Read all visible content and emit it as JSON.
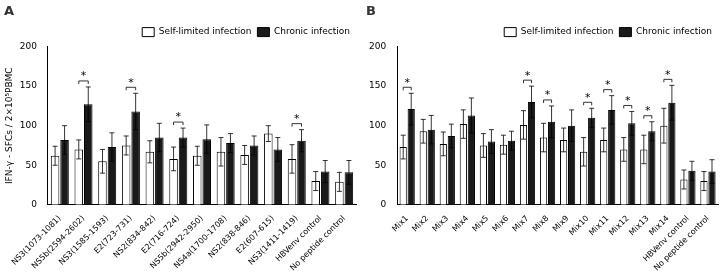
{
  "chart_data": [
    {
      "type": "bar",
      "title": "A",
      "categories": [
        "NS3(1073-1081)",
        "NS5b(2594-2602)",
        "NS3(1585-1593)",
        "E2(723-731)",
        "NS2(834-842)",
        "E2(716-724)",
        "NS5b(2942-2950)",
        "NS4a(1700-1708)",
        "NS2(838-846)",
        "E2(607-615)",
        "NS3(1411-1419)",
        "HBVenv control",
        "No peptide control"
      ],
      "series": [
        {
          "name": "Self-limited infection",
          "color": "#ffffff",
          "values": [
            62,
            70,
            55,
            75,
            67,
            58,
            62,
            67,
            63,
            90,
            58,
            30,
            29
          ],
          "errors": [
            12,
            12,
            15,
            12,
            14,
            15,
            12,
            18,
            12,
            10,
            18,
            12,
            12
          ]
        },
        {
          "name": "Chronic infection",
          "color": "#1a1a1a",
          "values": [
            82,
            127,
            73,
            118,
            85,
            85,
            83,
            78,
            75,
            70,
            81,
            42,
            41
          ],
          "errors": [
            18,
            22,
            18,
            23,
            18,
            12,
            18,
            12,
            12,
            15,
            14,
            14,
            15
          ]
        }
      ],
      "ylabel": "IFN-γ - SFCs / 2×10⁵PBMC",
      "ylim": [
        0,
        200
      ],
      "yticks": [
        0,
        50,
        100,
        150,
        200
      ],
      "grid": false,
      "legend": "upper right",
      "annotations": [
        {
          "category": "NS5b(2594-2602)",
          "text": "*"
        },
        {
          "category": "E2(723-731)",
          "text": "*"
        },
        {
          "category": "E2(716-724)",
          "text": "*"
        },
        {
          "category": "NS3(1411-1419)",
          "text": "*"
        }
      ]
    },
    {
      "type": "bar",
      "title": "B",
      "categories": [
        "Mix1",
        "Mix2",
        "Mix3",
        "Mix4",
        "Mix5",
        "Mix6",
        "Mix7",
        "Mix8",
        "Mix9",
        "Mix10",
        "Mix11",
        "Mix12",
        "Mix13",
        "Mix14",
        "HBVenv control",
        "No peptide control"
      ],
      "series": [
        {
          "name": "Self-limited infection",
          "color": "#ffffff",
          "values": [
            73,
            93,
            77,
            102,
            75,
            76,
            101,
            85,
            82,
            67,
            82,
            70,
            70,
            100,
            32,
            30
          ],
          "errors": [
            15,
            15,
            15,
            18,
            15,
            12,
            18,
            18,
            15,
            18,
            15,
            15,
            18,
            22,
            12,
            12
          ]
        },
        {
          "name": "Chronic infection",
          "color": "#1a1a1a",
          "values": [
            121,
            95,
            87,
            113,
            80,
            81,
            130,
            105,
            100,
            110,
            120,
            103,
            93,
            129,
            43,
            42
          ],
          "errors": [
            20,
            18,
            15,
            22,
            15,
            12,
            20,
            20,
            20,
            12,
            18,
            15,
            12,
            22,
            12,
            15
          ]
        }
      ],
      "ylim": [
        0,
        200
      ],
      "yticks": [
        0,
        50,
        100,
        150,
        200
      ],
      "grid": false,
      "legend": "upper right",
      "annotations": [
        {
          "category": "Mix1",
          "text": "*"
        },
        {
          "category": "Mix7",
          "text": "*"
        },
        {
          "category": "Mix8",
          "text": "*"
        },
        {
          "category": "Mix10",
          "text": "*"
        },
        {
          "category": "Mix11",
          "text": "*"
        },
        {
          "category": "Mix12",
          "text": "*"
        },
        {
          "category": "Mix13",
          "text": "*"
        },
        {
          "category": "Mix14",
          "text": "*"
        }
      ]
    }
  ]
}
